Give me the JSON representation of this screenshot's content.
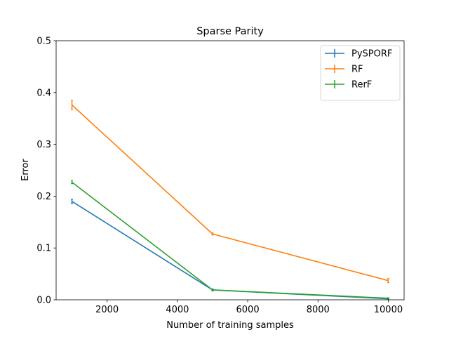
{
  "chart_data": {
    "type": "line",
    "title": "Sparse Parity",
    "xlabel": "Number of training samples",
    "ylabel": "Error",
    "xlim": [
      550,
      10450
    ],
    "ylim": [
      0,
      0.5
    ],
    "xticks": [
      2000,
      4000,
      6000,
      8000,
      10000
    ],
    "yticks": [
      0.0,
      0.1,
      0.2,
      0.3,
      0.4,
      0.5
    ],
    "x": [
      1000,
      5000,
      10000
    ],
    "series": [
      {
        "name": "PySPORF",
        "color": "#1f77b4",
        "values": [
          0.19,
          0.019,
          0.002
        ],
        "errors": [
          0.004,
          0.002,
          0.001
        ]
      },
      {
        "name": "RF",
        "color": "#ff7f0e",
        "values": [
          0.376,
          0.127,
          0.037
        ],
        "errors": [
          0.009,
          0.002,
          0.004
        ]
      },
      {
        "name": "RerF",
        "color": "#2ca02c",
        "values": [
          0.227,
          0.019,
          0.003
        ],
        "errors": [
          0.003,
          0.001,
          0.001
        ]
      }
    ],
    "legend_position": "top-right",
    "grid": false
  }
}
